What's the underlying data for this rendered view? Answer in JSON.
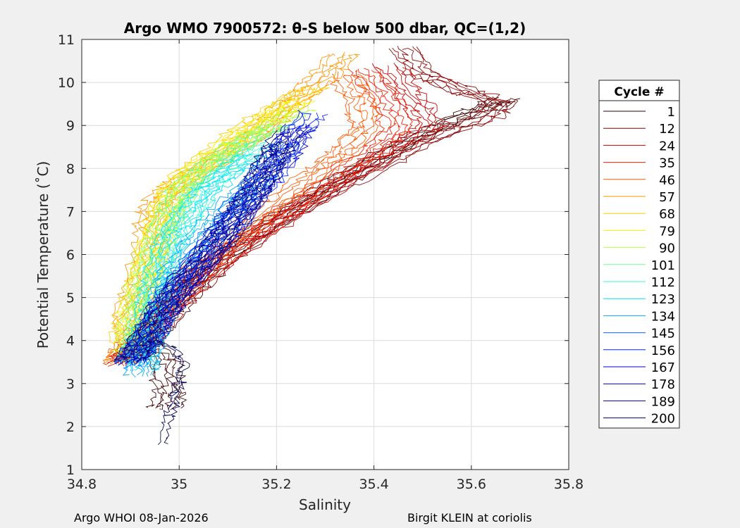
{
  "chart_data": {
    "type": "line",
    "title": "Argo WMO 7900572: θ-S below 500 dbar,  QC=(1,2)",
    "xlabel": "Salinity",
    "ylabel": "Potential Temperature (˚C)",
    "xlim": [
      34.8,
      35.8
    ],
    "ylim": [
      1,
      11
    ],
    "xticks": [
      "34.8",
      "35",
      "35.2",
      "35.4",
      "35.6",
      "35.8"
    ],
    "yticks": [
      "1",
      "2",
      "3",
      "4",
      "5",
      "6",
      "7",
      "8",
      "9",
      "10",
      "11"
    ],
    "grid": true,
    "legend": {
      "title": "Cycle #",
      "placement": "right",
      "entries": [
        "1",
        "12",
        "24",
        "35",
        "46",
        "57",
        "68",
        "79",
        "90",
        "101",
        "112",
        "123",
        "134",
        "145",
        "156",
        "167",
        "178",
        "189",
        "200"
      ],
      "colors": [
        "#3d0000",
        "#8a0000",
        "#c80000",
        "#f11f00",
        "#ff5a00",
        "#ff9500",
        "#ffcc00",
        "#f5f500",
        "#b6ff3f",
        "#6cff89",
        "#2fffd0",
        "#00e0ff",
        "#00a6ff",
        "#0068ff",
        "#0026ff",
        "#0000d6",
        "#00008d",
        "#00007f",
        "#000054"
      ]
    },
    "series_groups": [
      {
        "cycles": "1",
        "color": "#3d0000",
        "trace": [
          [
            35.67,
            9.6
          ],
          [
            35.6,
            9.3
          ],
          [
            35.5,
            8.8
          ],
          [
            35.4,
            8.2
          ],
          [
            35.3,
            7.5
          ],
          [
            35.2,
            6.8
          ],
          [
            35.1,
            6.0
          ],
          [
            35.02,
            5.2
          ],
          [
            34.96,
            4.4
          ],
          [
            34.93,
            3.9
          ],
          [
            34.97,
            3.5
          ],
          [
            34.98,
            2.8
          ],
          [
            34.97,
            2.4
          ]
        ]
      },
      {
        "cycles": "12",
        "color": "#8a0000",
        "trace": [
          [
            35.46,
            10.8
          ],
          [
            35.5,
            10.2
          ],
          [
            35.58,
            9.8
          ],
          [
            35.66,
            9.55
          ],
          [
            35.63,
            9.2
          ],
          [
            35.5,
            8.6
          ],
          [
            35.38,
            7.9
          ],
          [
            35.25,
            7.1
          ],
          [
            35.12,
            6.2
          ],
          [
            35.03,
            5.3
          ],
          [
            34.96,
            4.5
          ],
          [
            34.91,
            3.8
          ],
          [
            34.89,
            3.5
          ]
        ]
      },
      {
        "cycles": "24",
        "color": "#c80000",
        "trace": [
          [
            35.43,
            10.4
          ],
          [
            35.48,
            9.6
          ],
          [
            35.52,
            9.0
          ],
          [
            35.45,
            8.5
          ],
          [
            35.35,
            7.8
          ],
          [
            35.24,
            7.0
          ],
          [
            35.13,
            6.2
          ],
          [
            35.04,
            5.4
          ],
          [
            34.97,
            4.6
          ],
          [
            34.92,
            3.9
          ],
          [
            34.89,
            3.5
          ]
        ]
      },
      {
        "cycles": "35",
        "color": "#f11f00",
        "trace": [
          [
            35.38,
            10.3
          ],
          [
            35.42,
            9.7
          ],
          [
            35.45,
            9.0
          ],
          [
            35.4,
            8.4
          ],
          [
            35.32,
            7.8
          ],
          [
            35.22,
            7.0
          ],
          [
            35.12,
            6.2
          ],
          [
            35.03,
            5.4
          ],
          [
            34.96,
            4.6
          ],
          [
            34.91,
            3.9
          ],
          [
            34.88,
            3.45
          ]
        ]
      },
      {
        "cycles": "46",
        "color": "#ff5a00",
        "trace": [
          [
            35.34,
            10.2
          ],
          [
            35.37,
            9.6
          ],
          [
            35.38,
            9.0
          ],
          [
            35.34,
            8.4
          ],
          [
            35.28,
            7.9
          ],
          [
            35.2,
            7.2
          ],
          [
            35.1,
            6.3
          ],
          [
            35.02,
            5.5
          ],
          [
            34.95,
            4.6
          ],
          [
            34.9,
            3.9
          ],
          [
            34.88,
            3.5
          ]
        ]
      },
      {
        "cycles": "57",
        "color": "#ff9500",
        "trace": [
          [
            35.34,
            10.65
          ],
          [
            35.3,
            10.2
          ],
          [
            35.25,
            9.7
          ],
          [
            35.2,
            9.2
          ],
          [
            35.15,
            8.7
          ],
          [
            35.08,
            8.2
          ],
          [
            35.0,
            7.7
          ],
          [
            34.96,
            7.3
          ],
          [
            34.94,
            6.8
          ],
          [
            34.94,
            6.2
          ],
          [
            34.92,
            5.4
          ],
          [
            34.9,
            4.6
          ],
          [
            34.9,
            3.9
          ],
          [
            34.88,
            3.5
          ]
        ]
      },
      {
        "cycles": "68",
        "color": "#ffcc00",
        "trace": [
          [
            35.28,
            9.9
          ],
          [
            35.22,
            9.5
          ],
          [
            35.16,
            9.1
          ],
          [
            35.1,
            8.6
          ],
          [
            35.03,
            8.0
          ],
          [
            34.99,
            7.5
          ],
          [
            34.97,
            7.0
          ],
          [
            34.95,
            6.2
          ],
          [
            34.92,
            5.3
          ],
          [
            34.9,
            4.5
          ],
          [
            34.89,
            3.9
          ]
        ]
      },
      {
        "cycles": "79",
        "color": "#f5f500",
        "trace": [
          [
            35.25,
            9.6
          ],
          [
            35.19,
            9.2
          ],
          [
            35.13,
            8.8
          ],
          [
            35.06,
            8.2
          ],
          [
            35.0,
            7.6
          ],
          [
            34.97,
            7.0
          ],
          [
            34.95,
            6.3
          ],
          [
            34.93,
            5.5
          ],
          [
            34.91,
            4.6
          ],
          [
            34.9,
            3.9
          ]
        ]
      },
      {
        "cycles": "90",
        "color": "#b6ff3f",
        "trace": [
          [
            35.25,
            9.4
          ],
          [
            35.19,
            9.0
          ],
          [
            35.12,
            8.5
          ],
          [
            35.05,
            8.0
          ],
          [
            35.0,
            7.4
          ],
          [
            34.97,
            6.7
          ],
          [
            34.94,
            5.9
          ],
          [
            34.92,
            5.0
          ],
          [
            34.91,
            4.3
          ],
          [
            34.9,
            3.7
          ]
        ]
      },
      {
        "cycles": "101",
        "color": "#6cff89",
        "trace": [
          [
            35.2,
            9.0
          ],
          [
            35.15,
            8.7
          ],
          [
            35.09,
            8.3
          ],
          [
            35.03,
            7.8
          ],
          [
            34.99,
            7.2
          ],
          [
            34.97,
            6.5
          ],
          [
            34.95,
            5.7
          ],
          [
            34.93,
            4.9
          ],
          [
            34.92,
            4.2
          ],
          [
            34.91,
            3.6
          ]
        ]
      },
      {
        "cycles": "112",
        "color": "#2fffd0",
        "trace": [
          [
            35.18,
            8.6
          ],
          [
            35.12,
            8.2
          ],
          [
            35.06,
            7.6
          ],
          [
            35.02,
            7.0
          ],
          [
            34.99,
            6.4
          ],
          [
            34.96,
            5.6
          ],
          [
            34.94,
            4.8
          ],
          [
            34.92,
            4.0
          ],
          [
            34.9,
            3.5
          ]
        ]
      },
      {
        "cycles": "123",
        "color": "#00e0ff",
        "trace": [
          [
            35.15,
            8.3
          ],
          [
            35.1,
            7.9
          ],
          [
            35.05,
            7.4
          ],
          [
            35.01,
            6.8
          ],
          [
            34.98,
            6.2
          ],
          [
            34.96,
            5.4
          ],
          [
            34.94,
            4.6
          ],
          [
            34.93,
            3.9
          ],
          [
            34.92,
            3.3
          ]
        ]
      },
      {
        "cycles": "134",
        "color": "#00a6ff",
        "trace": [
          [
            35.17,
            7.8
          ],
          [
            35.12,
            7.3
          ],
          [
            35.07,
            6.8
          ],
          [
            35.03,
            6.2
          ],
          [
            34.99,
            5.6
          ],
          [
            34.97,
            5.0
          ],
          [
            34.95,
            4.3
          ],
          [
            34.93,
            3.7
          ],
          [
            34.92,
            3.2
          ]
        ]
      },
      {
        "cycles": "145",
        "color": "#0068ff",
        "trace": [
          [
            35.22,
            8.6
          ],
          [
            35.18,
            8.0
          ],
          [
            35.14,
            7.4
          ],
          [
            35.1,
            6.8
          ],
          [
            35.05,
            6.1
          ],
          [
            35.0,
            5.4
          ],
          [
            34.96,
            4.7
          ],
          [
            34.93,
            4.0
          ],
          [
            34.9,
            3.4
          ]
        ]
      },
      {
        "cycles": "156",
        "color": "#0026ff",
        "trace": [
          [
            35.27,
            9.3
          ],
          [
            35.23,
            8.7
          ],
          [
            35.2,
            8.0
          ],
          [
            35.15,
            7.3
          ],
          [
            35.1,
            6.6
          ],
          [
            35.04,
            5.8
          ],
          [
            34.98,
            5.0
          ],
          [
            34.94,
            4.2
          ],
          [
            34.9,
            3.5
          ]
        ]
      },
      {
        "cycles": "167",
        "color": "#0000d6",
        "trace": [
          [
            35.25,
            9.0
          ],
          [
            35.22,
            8.4
          ],
          [
            35.18,
            7.8
          ],
          [
            35.13,
            7.1
          ],
          [
            35.08,
            6.3
          ],
          [
            35.02,
            5.5
          ],
          [
            34.97,
            4.7
          ],
          [
            34.93,
            4.0
          ],
          [
            34.9,
            3.5
          ]
        ]
      },
      {
        "cycles": "178",
        "color": "#00008d",
        "trace": [
          [
            35.21,
            8.6
          ],
          [
            35.18,
            8.0
          ],
          [
            35.15,
            7.4
          ],
          [
            35.1,
            6.7
          ],
          [
            35.05,
            5.9
          ],
          [
            34.99,
            5.1
          ],
          [
            34.95,
            4.4
          ],
          [
            34.92,
            3.8
          ],
          [
            34.9,
            3.5
          ]
        ]
      },
      {
        "cycles": "189",
        "color": "#00007f",
        "trace": [
          [
            35.23,
            8.9
          ],
          [
            35.19,
            8.2
          ],
          [
            35.16,
            7.5
          ],
          [
            35.12,
            6.8
          ],
          [
            35.06,
            6.0
          ],
          [
            35.0,
            5.2
          ],
          [
            34.95,
            4.4
          ],
          [
            34.91,
            3.7
          ]
        ]
      },
      {
        "cycles": "200",
        "color": "#000054",
        "trace": [
          [
            34.95,
            4.0
          ],
          [
            34.99,
            3.8
          ],
          [
            35.01,
            3.4
          ],
          [
            35.0,
            3.0
          ],
          [
            34.99,
            2.6
          ],
          [
            34.98,
            2.2
          ],
          [
            34.97,
            1.6
          ]
        ]
      }
    ]
  },
  "footer": {
    "left": "Argo WHOI 08-Jan-2026",
    "right": "Birgit KLEIN at coriolis"
  }
}
